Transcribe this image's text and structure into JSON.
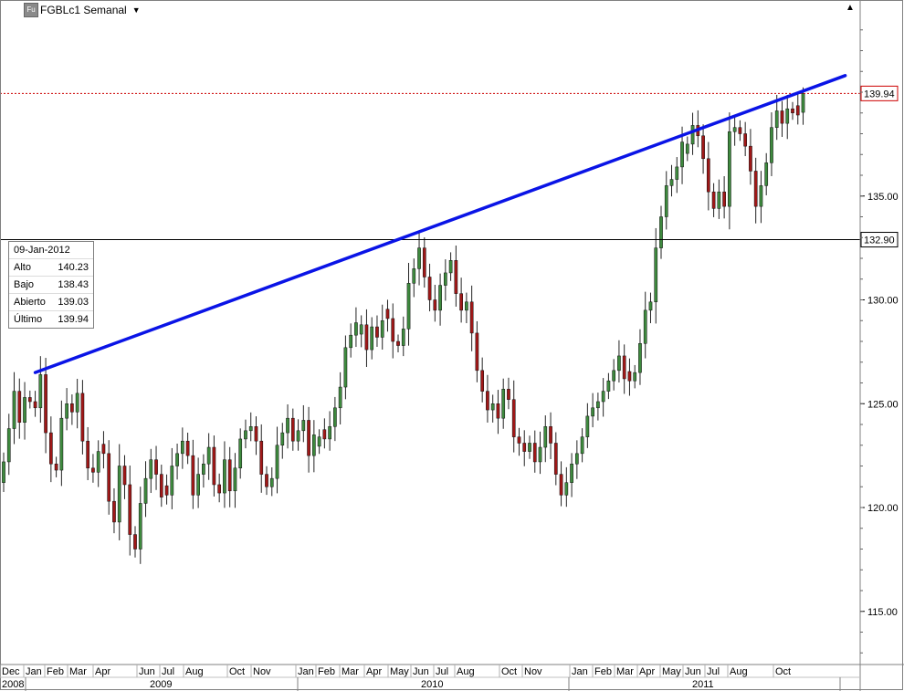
{
  "title": {
    "badge": "Fu",
    "label": "FGBLc1 Semanal",
    "dropdown_icon": "triangle-down-icon"
  },
  "info_box": {
    "date": "09-Jan-2012",
    "rows": [
      {
        "label": "Alto",
        "value": "140.23"
      },
      {
        "label": "Bajo",
        "value": "138.43"
      },
      {
        "label": "Abierto",
        "value": "139.03"
      },
      {
        "label": "Último",
        "value": "139.94"
      }
    ]
  },
  "markers": {
    "last_price": {
      "label": "139.94",
      "value": 139.94,
      "line_color": "#cc0000",
      "line_style": "dotted"
    },
    "crosshair_price": {
      "label": "132.90",
      "value": 132.9,
      "line_color": "#000000"
    }
  },
  "colors": {
    "up": "#3e8a3e",
    "down": "#a01818",
    "wick": "#222222",
    "trendline": "#0a14e6"
  },
  "chart_data": {
    "type": "candlestick",
    "ylim": [
      112.5,
      143.5
    ],
    "y_ticks": [
      "115.00",
      "120.00",
      "125.00",
      "130.00",
      "135.00"
    ],
    "x_month_labels": [
      "Dec",
      "Jan",
      "Feb",
      "Mar",
      "Apr",
      "Jun",
      "Jul",
      "Aug",
      "Oct",
      "Nov",
      "Jan",
      "Feb",
      "Mar",
      "Apr",
      "May",
      "Jun",
      "Jul",
      "Aug",
      "Oct",
      "Nov",
      "Jan",
      "Feb",
      "Mar",
      "Apr",
      "May",
      "Jun",
      "Jul",
      "Aug",
      "Oct"
    ],
    "x_year_labels": [
      "2008",
      "2009",
      "2010",
      "2011"
    ],
    "grid": false,
    "trendline": {
      "from": {
        "week": 6,
        "price": 126.5
      },
      "to": {
        "week": 160,
        "price": 140.8
      }
    },
    "closes": [
      122.2,
      123.8,
      125.6,
      124.1,
      125.3,
      125.1,
      124.8,
      126.4,
      123.6,
      122.1,
      121.8,
      124.3,
      125.0,
      124.6,
      125.5,
      123.2,
      121.9,
      121.7,
      122.7,
      122.6,
      120.3,
      119.3,
      122.0,
      121.1,
      118.7,
      118.0,
      120.2,
      121.4,
      122.3,
      121.6,
      120.5,
      120.6,
      122.0,
      122.6,
      123.2,
      122.5,
      120.6,
      121.6,
      122.1,
      122.9,
      121.1,
      120.7,
      122.3,
      120.8,
      121.9,
      123.3,
      123.7,
      123.9,
      123.2,
      121.6,
      121.0,
      121.4,
      123.0,
      123.6,
      124.3,
      123.2,
      123.7,
      124.2,
      122.5,
      123.5,
      123.4,
      123.3,
      123.9,
      124.8,
      125.8,
      127.7,
      128.3,
      128.9,
      128.8,
      127.6,
      128.7,
      128.2,
      129.0,
      129.1,
      128.0,
      127.8,
      128.6,
      130.8,
      131.5,
      132.5,
      131.1,
      130.0,
      129.5,
      130.7,
      131.3,
      131.9,
      130.3,
      129.5,
      129.9,
      128.4,
      126.6,
      125.6,
      124.7,
      125.0,
      124.3,
      125.7,
      125.2,
      123.4,
      123.1,
      122.7,
      123.1,
      122.2,
      122.9,
      123.9,
      123.1,
      121.6,
      120.6,
      121.2,
      122.1,
      122.6,
      123.4,
      124.4,
      124.8,
      125.1,
      125.6,
      126.1,
      126.6,
      127.3,
      126.2,
      126.1,
      126.5,
      127.9,
      129.5,
      129.9,
      132.5,
      134.0,
      135.5,
      135.8,
      136.4,
      137.6,
      137.5,
      138.4,
      137.9,
      136.8,
      135.2,
      134.4,
      135.2,
      134.5,
      138.1,
      138.3,
      138.0,
      137.4,
      136.2,
      134.5,
      135.5,
      136.6,
      138.3,
      139.1,
      138.5,
      139.2,
      139.0,
      138.9,
      139.94
    ]
  }
}
